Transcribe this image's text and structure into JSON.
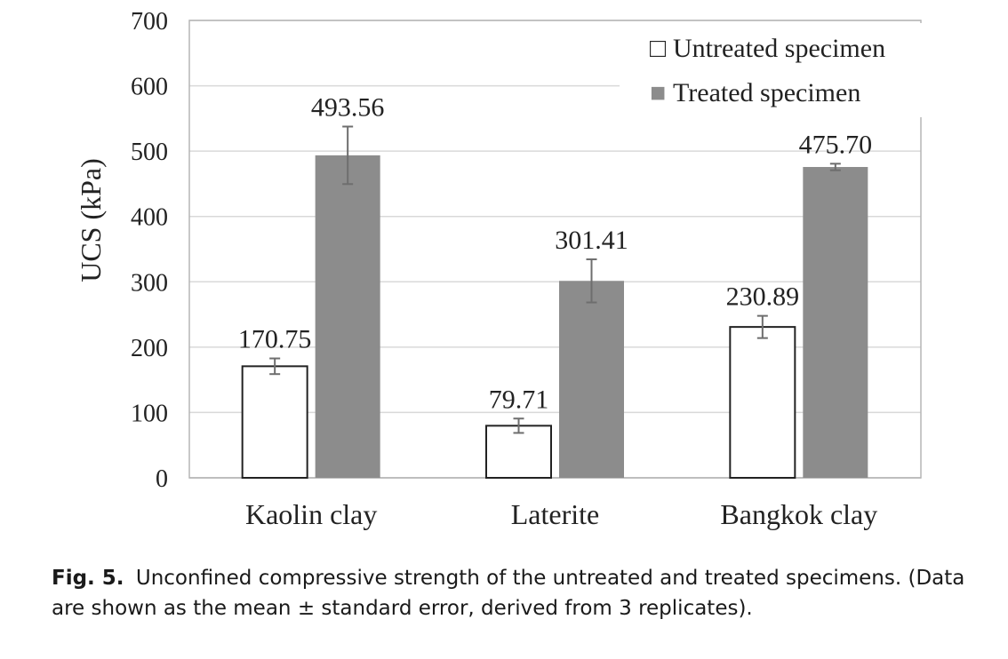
{
  "chart_data": {
    "type": "bar",
    "categories": [
      "Kaolin clay",
      "Laterite",
      "Bangkok clay"
    ],
    "series": [
      {
        "name": "Untreated specimen",
        "values": [
          170.75,
          79.71,
          230.89
        ],
        "labels": [
          "170.75",
          "79.71",
          "230.89"
        ],
        "errors": [
          12,
          11,
          17
        ],
        "color": "#ffffff",
        "stroke": "#222222"
      },
      {
        "name": "Treated specimen",
        "values": [
          493.56,
          301.41,
          475.7
        ],
        "labels": [
          "493.56",
          "301.41",
          "475.70"
        ],
        "errors": [
          44,
          33,
          5
        ],
        "color": "#8c8c8c",
        "stroke": "#8c8c8c"
      }
    ],
    "ylabel": "UCS (kPa)",
    "ylim": [
      0,
      700
    ],
    "yticks": [
      "0",
      "100",
      "200",
      "300",
      "400",
      "500",
      "600",
      "700"
    ],
    "grid": true,
    "legend_position": "top-right",
    "legend_marker_untreated": "□",
    "legend_marker_treated": "■"
  },
  "caption": {
    "label": "Fig. 5.",
    "text": "Unconfined compressive strength of the untreated and treated specimens. (Data are shown as the mean ± standard error, derived from 3 replicates)."
  }
}
